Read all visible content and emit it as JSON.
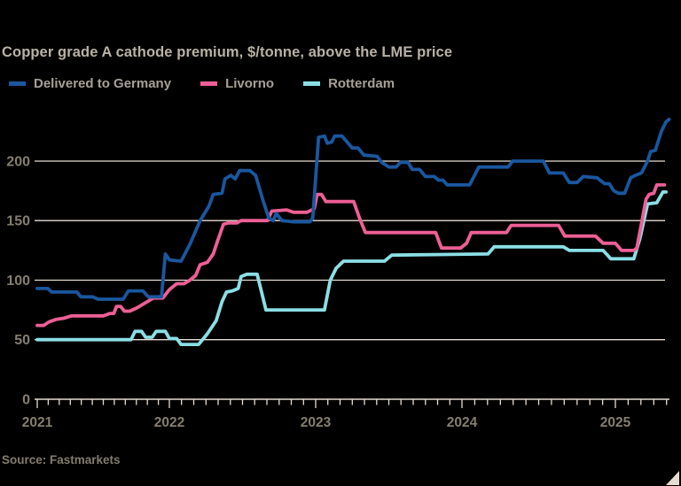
{
  "title": "Copper grade A cathode premium, $/tonne, above the LME price",
  "source": "Source: Fastmarkets",
  "legend": [
    {
      "label": "Delivered to Germany",
      "color": "#1a579f"
    },
    {
      "label": "Livorno",
      "color": "#ee5f96"
    },
    {
      "label": "Rotterdam",
      "color": "#8adfe5"
    }
  ],
  "colors": {
    "background": "#000000",
    "grid": "#e7dcd0",
    "axis_labels": "#857e70",
    "corner_mark": "#e7dcd0"
  },
  "chart_data": {
    "type": "line",
    "title": "Copper grade A cathode premium, $/tonne, above the LME price",
    "xlabel": "",
    "ylabel": "$/tonne",
    "x_ticks": [
      "2021",
      "2022",
      "2023",
      "2024",
      "2025"
    ],
    "x_tick_years": [
      2021,
      2022,
      2023,
      2024,
      2025
    ],
    "y_ticks": [
      "0",
      "50",
      "100",
      "150",
      "200"
    ],
    "y_tick_values": [
      0,
      50,
      100,
      150,
      200
    ],
    "y_gridlines": [
      50,
      100,
      150,
      200
    ],
    "ylim": [
      0,
      240
    ],
    "xlim": [
      2021.0,
      2025.42
    ],
    "grid": "horizontal",
    "legend_position": "top-left",
    "minor_ticks": "monthly",
    "series": [
      {
        "name": "Delivered to Germany",
        "color": "#1a579f",
        "points": [
          [
            2021.0,
            93
          ],
          [
            2021.08,
            93
          ],
          [
            2021.11,
            90
          ],
          [
            2021.3,
            90
          ],
          [
            2021.33,
            86
          ],
          [
            2021.42,
            86
          ],
          [
            2021.46,
            84
          ],
          [
            2021.65,
            84
          ],
          [
            2021.69,
            91
          ],
          [
            2021.8,
            91
          ],
          [
            2021.84,
            86
          ],
          [
            2021.94,
            86
          ],
          [
            2021.97,
            122
          ],
          [
            2022.0,
            117
          ],
          [
            2022.08,
            116
          ],
          [
            2022.14,
            130
          ],
          [
            2022.21,
            150
          ],
          [
            2022.27,
            162
          ],
          [
            2022.3,
            172
          ],
          [
            2022.36,
            173
          ],
          [
            2022.38,
            185
          ],
          [
            2022.42,
            188
          ],
          [
            2022.45,
            185
          ],
          [
            2022.48,
            192
          ],
          [
            2022.55,
            192
          ],
          [
            2022.59,
            188
          ],
          [
            2022.64,
            167
          ],
          [
            2022.68,
            152
          ],
          [
            2022.71,
            150
          ],
          [
            2022.73,
            156
          ],
          [
            2022.77,
            150
          ],
          [
            2022.85,
            149
          ],
          [
            2022.96,
            149
          ],
          [
            2022.98,
            152
          ],
          [
            2023.02,
            220
          ],
          [
            2023.06,
            221
          ],
          [
            2023.08,
            215
          ],
          [
            2023.11,
            216
          ],
          [
            2023.13,
            221
          ],
          [
            2023.18,
            221
          ],
          [
            2023.25,
            211
          ],
          [
            2023.29,
            211
          ],
          [
            2023.33,
            205
          ],
          [
            2023.42,
            204
          ],
          [
            2023.45,
            199
          ],
          [
            2023.5,
            195
          ],
          [
            2023.55,
            195
          ],
          [
            2023.58,
            199
          ],
          [
            2023.63,
            199
          ],
          [
            2023.66,
            193
          ],
          [
            2023.71,
            193
          ],
          [
            2023.75,
            187
          ],
          [
            2023.81,
            187
          ],
          [
            2023.84,
            184
          ],
          [
            2023.87,
            184
          ],
          [
            2023.9,
            180
          ],
          [
            2024.05,
            180
          ],
          [
            2024.11,
            195
          ],
          [
            2024.3,
            195
          ],
          [
            2024.33,
            200
          ],
          [
            2024.53,
            200
          ],
          [
            2024.57,
            190
          ],
          [
            2024.66,
            190
          ],
          [
            2024.7,
            182
          ],
          [
            2024.75,
            182
          ],
          [
            2024.79,
            187
          ],
          [
            2024.88,
            186
          ],
          [
            2024.93,
            181
          ],
          [
            2024.96,
            181
          ],
          [
            2024.99,
            175
          ],
          [
            2025.02,
            173
          ],
          [
            2025.06,
            173
          ],
          [
            2025.1,
            186
          ],
          [
            2025.13,
            188
          ],
          [
            2025.17,
            190
          ],
          [
            2025.21,
            200
          ],
          [
            2025.23,
            208
          ],
          [
            2025.26,
            209
          ],
          [
            2025.3,
            225
          ],
          [
            2025.33,
            233
          ],
          [
            2025.35,
            235
          ]
        ]
      },
      {
        "name": "Livorno",
        "color": "#ee5f96",
        "points": [
          [
            2021.0,
            62
          ],
          [
            2021.05,
            62
          ],
          [
            2021.09,
            65
          ],
          [
            2021.14,
            67
          ],
          [
            2021.2,
            68
          ],
          [
            2021.26,
            70
          ],
          [
            2021.5,
            70
          ],
          [
            2021.55,
            72
          ],
          [
            2021.58,
            72
          ],
          [
            2021.6,
            78
          ],
          [
            2021.63,
            78
          ],
          [
            2021.66,
            74
          ],
          [
            2021.7,
            74
          ],
          [
            2021.76,
            77
          ],
          [
            2021.85,
            83
          ],
          [
            2021.88,
            85
          ],
          [
            2021.95,
            85
          ],
          [
            2022.0,
            92
          ],
          [
            2022.05,
            97
          ],
          [
            2022.1,
            97
          ],
          [
            2022.14,
            100
          ],
          [
            2022.18,
            104
          ],
          [
            2022.21,
            113
          ],
          [
            2022.26,
            115
          ],
          [
            2022.3,
            122
          ],
          [
            2022.33,
            133
          ],
          [
            2022.37,
            147
          ],
          [
            2022.4,
            148
          ],
          [
            2022.46,
            148
          ],
          [
            2022.49,
            150
          ],
          [
            2022.67,
            150
          ],
          [
            2022.7,
            158
          ],
          [
            2022.8,
            159
          ],
          [
            2022.85,
            157
          ],
          [
            2022.94,
            157
          ],
          [
            2022.99,
            160
          ],
          [
            2023.01,
            172
          ],
          [
            2023.04,
            172
          ],
          [
            2023.07,
            166
          ],
          [
            2023.26,
            166
          ],
          [
            2023.3,
            152
          ],
          [
            2023.34,
            140
          ],
          [
            2023.82,
            140
          ],
          [
            2023.86,
            127
          ],
          [
            2023.99,
            127
          ],
          [
            2024.03,
            131
          ],
          [
            2024.06,
            140
          ],
          [
            2024.29,
            140
          ],
          [
            2024.32,
            146
          ],
          [
            2024.63,
            146
          ],
          [
            2024.67,
            137
          ],
          [
            2024.87,
            137
          ],
          [
            2024.92,
            131
          ],
          [
            2025.0,
            131
          ],
          [
            2025.04,
            125
          ],
          [
            2025.12,
            125
          ],
          [
            2025.14,
            127
          ],
          [
            2025.2,
            168
          ],
          [
            2025.22,
            172
          ],
          [
            2025.25,
            173
          ],
          [
            2025.27,
            180
          ],
          [
            2025.32,
            180
          ]
        ]
      },
      {
        "name": "Rotterdam",
        "color": "#8adfe5",
        "points": [
          [
            2021.0,
            50
          ],
          [
            2021.71,
            50
          ],
          [
            2021.74,
            57
          ],
          [
            2021.79,
            57
          ],
          [
            2021.82,
            52
          ],
          [
            2021.87,
            52
          ],
          [
            2021.9,
            57
          ],
          [
            2021.97,
            57
          ],
          [
            2022.0,
            51
          ],
          [
            2022.05,
            51
          ],
          [
            2022.08,
            46
          ],
          [
            2022.2,
            46
          ],
          [
            2022.26,
            55
          ],
          [
            2022.32,
            66
          ],
          [
            2022.36,
            82
          ],
          [
            2022.39,
            90
          ],
          [
            2022.43,
            91
          ],
          [
            2022.47,
            93
          ],
          [
            2022.49,
            103
          ],
          [
            2022.53,
            105
          ],
          [
            2022.6,
            105
          ],
          [
            2022.63,
            90
          ],
          [
            2022.66,
            75
          ],
          [
            2023.06,
            75
          ],
          [
            2023.1,
            100
          ],
          [
            2023.14,
            110
          ],
          [
            2023.19,
            116
          ],
          [
            2023.47,
            116
          ],
          [
            2023.52,
            121
          ],
          [
            2024.17,
            122
          ],
          [
            2024.21,
            128
          ],
          [
            2024.66,
            128
          ],
          [
            2024.7,
            125
          ],
          [
            2024.92,
            125
          ],
          [
            2024.97,
            118
          ],
          [
            2025.12,
            118
          ],
          [
            2025.16,
            135
          ],
          [
            2025.21,
            164
          ],
          [
            2025.27,
            165
          ],
          [
            2025.31,
            174
          ],
          [
            2025.33,
            174
          ]
        ]
      }
    ]
  }
}
